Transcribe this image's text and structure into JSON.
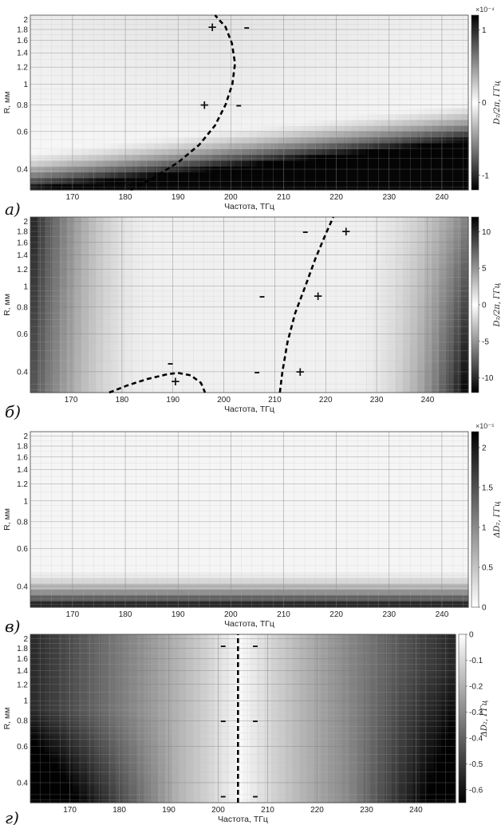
{
  "chart_data": [
    {
      "type": "heatmap",
      "panel_label": "а)",
      "xlabel": "Частота, ТГц",
      "ylabel": "R, мм",
      "xlim": [
        162,
        245
      ],
      "ylim": [
        0.32,
        2.1
      ],
      "xticks": [
        170,
        180,
        190,
        200,
        210,
        220,
        230,
        240
      ],
      "yticks": [
        0.4,
        0.6,
        0.8,
        1,
        1.2,
        1.4,
        1.6,
        1.8,
        2
      ],
      "ytick_labels": [
        "0.4",
        "0.6",
        "0.8",
        "1",
        "1.2",
        "1.4",
        "1.6",
        "1.8",
        "2"
      ],
      "y_scale": "log",
      "colorbar": {
        "label": "D₂/2π, ГГц",
        "exponent": "×10⁻⁴",
        "ticks": [
          -1,
          0,
          1
        ],
        "tick_labels": [
          "-1",
          "0",
          "1"
        ],
        "range": [
          -1.2,
          1.2
        ]
      },
      "zero_curve": {
        "x": [
          181,
          185,
          190,
          194,
          197,
          199,
          200.3,
          200.8,
          200.2,
          199,
          197
        ],
        "y": [
          0.32,
          0.36,
          0.43,
          0.52,
          0.64,
          0.8,
          1.0,
          1.25,
          1.55,
          1.85,
          2.1
        ]
      },
      "signs": [
        {
          "text": "+",
          "x": 196.5,
          "y": 1.85
        },
        {
          "text": "–",
          "x": 203,
          "y": 1.85
        },
        {
          "text": "+",
          "x": 195,
          "y": 0.8
        },
        {
          "text": "–",
          "x": 201.5,
          "y": 0.8
        },
        {
          "text": "+",
          "x": 180.5,
          "y": 0.345
        },
        {
          "text": "–",
          "x": 186,
          "y": 0.345
        }
      ]
    },
    {
      "type": "heatmap",
      "panel_label": "б)",
      "xlabel": "Частота, ТГц",
      "ylabel": "R, мм",
      "xlim": [
        162,
        248
      ],
      "ylim": [
        0.32,
        2.1
      ],
      "xticks": [
        170,
        180,
        190,
        200,
        210,
        220,
        230,
        240
      ],
      "yticks": [
        0.4,
        0.6,
        0.8,
        1,
        1.2,
        1.4,
        1.6,
        1.8,
        2
      ],
      "ytick_labels": [
        "0.4",
        "0.6",
        "0.8",
        "1",
        "1.2",
        "1.4",
        "1.6",
        "1.8",
        "2"
      ],
      "y_scale": "log",
      "colorbar": {
        "label": "D₂/2π, ГГц",
        "exponent": "",
        "ticks": [
          10,
          5,
          0,
          -5,
          -10
        ],
        "tick_labels": [
          "10",
          "5",
          "0",
          "-5",
          "-10"
        ],
        "range": [
          -12,
          12
        ]
      },
      "zero_curve": {
        "x": [
          211,
          211.5,
          212.5,
          214,
          216,
          218,
          220,
          221.5
        ],
        "y": [
          0.32,
          0.4,
          0.55,
          0.75,
          1.0,
          1.35,
          1.75,
          2.1
        ]
      },
      "zero_curve_2": {
        "x": [
          177.5,
          181,
          185,
          189,
          191,
          193.5,
          195.5,
          196.3
        ],
        "y": [
          0.32,
          0.345,
          0.37,
          0.39,
          0.395,
          0.385,
          0.355,
          0.32
        ]
      },
      "signs": [
        {
          "text": "–",
          "x": 216,
          "y": 1.8
        },
        {
          "text": "+",
          "x": 224,
          "y": 1.8
        },
        {
          "text": "–",
          "x": 207.5,
          "y": 0.9
        },
        {
          "text": "+",
          "x": 218.5,
          "y": 0.9
        },
        {
          "text": "–",
          "x": 206.5,
          "y": 0.4
        },
        {
          "text": "+",
          "x": 215,
          "y": 0.4
        },
        {
          "text": "–",
          "x": 189.5,
          "y": 0.44
        },
        {
          "text": "+",
          "x": 190.5,
          "y": 0.36
        }
      ]
    },
    {
      "type": "heatmap",
      "panel_label": "в)",
      "xlabel": "Частота, ТГц",
      "ylabel": "R, мм",
      "xlim": [
        162,
        245
      ],
      "ylim": [
        0.32,
        2.1
      ],
      "xticks": [
        170,
        180,
        190,
        200,
        210,
        220,
        230,
        240
      ],
      "yticks": [
        0.4,
        0.6,
        0.8,
        1,
        1.2,
        1.4,
        1.6,
        1.8,
        2
      ],
      "ytick_labels": [
        "0.4",
        "0.6",
        "0.8",
        "1",
        "1.2",
        "1.4",
        "1.6",
        "1.8",
        "2"
      ],
      "y_scale": "log",
      "colorbar": {
        "label": "ΔD₂, ГГц",
        "exponent": "×10⁻⁵",
        "ticks": [
          2,
          1.5,
          1,
          0.5,
          0
        ],
        "tick_labels": [
          "2",
          "1.5",
          "1",
          "0.5",
          "0"
        ],
        "range": [
          0,
          2.2
        ]
      },
      "signs": []
    },
    {
      "type": "heatmap",
      "panel_label": "г)",
      "xlabel": "Частота, ТГц",
      "ylabel": "R, мм",
      "xlim": [
        162,
        248
      ],
      "ylim": [
        0.32,
        2.1
      ],
      "xticks": [
        170,
        180,
        190,
        200,
        210,
        220,
        230,
        240
      ],
      "yticks": [
        0.4,
        0.6,
        0.8,
        1,
        1.2,
        1.4,
        1.6,
        1.8,
        2
      ],
      "ytick_labels": [
        "0.4",
        "0.6",
        "0.8",
        "1",
        "1.2",
        "1.4",
        "1.6",
        "1.8",
        "2"
      ],
      "y_scale": "log",
      "colorbar": {
        "label": "ΔD₂, ГГц",
        "exponent": "",
        "ticks": [
          0,
          -0.1,
          -0.2,
          -0.3,
          -0.4,
          -0.5,
          -0.6
        ],
        "tick_labels": [
          "0",
          "-0.1",
          "-0.2",
          "-0.3",
          "-0.4",
          "-0.5",
          "-0.6"
        ],
        "range": [
          -0.65,
          0
        ]
      },
      "zero_curve": {
        "x": [
          204,
          204,
          204,
          204
        ],
        "y": [
          0.32,
          0.7,
          1.3,
          2.1
        ]
      },
      "signs": [
        {
          "text": "–",
          "x": 201,
          "y": 1.85
        },
        {
          "text": "–",
          "x": 207.5,
          "y": 1.85
        },
        {
          "text": "–",
          "x": 201,
          "y": 0.8
        },
        {
          "text": "–",
          "x": 207.5,
          "y": 0.8
        },
        {
          "text": "–",
          "x": 201,
          "y": 0.345
        },
        {
          "text": "–",
          "x": 207.5,
          "y": 0.345
        }
      ]
    }
  ]
}
